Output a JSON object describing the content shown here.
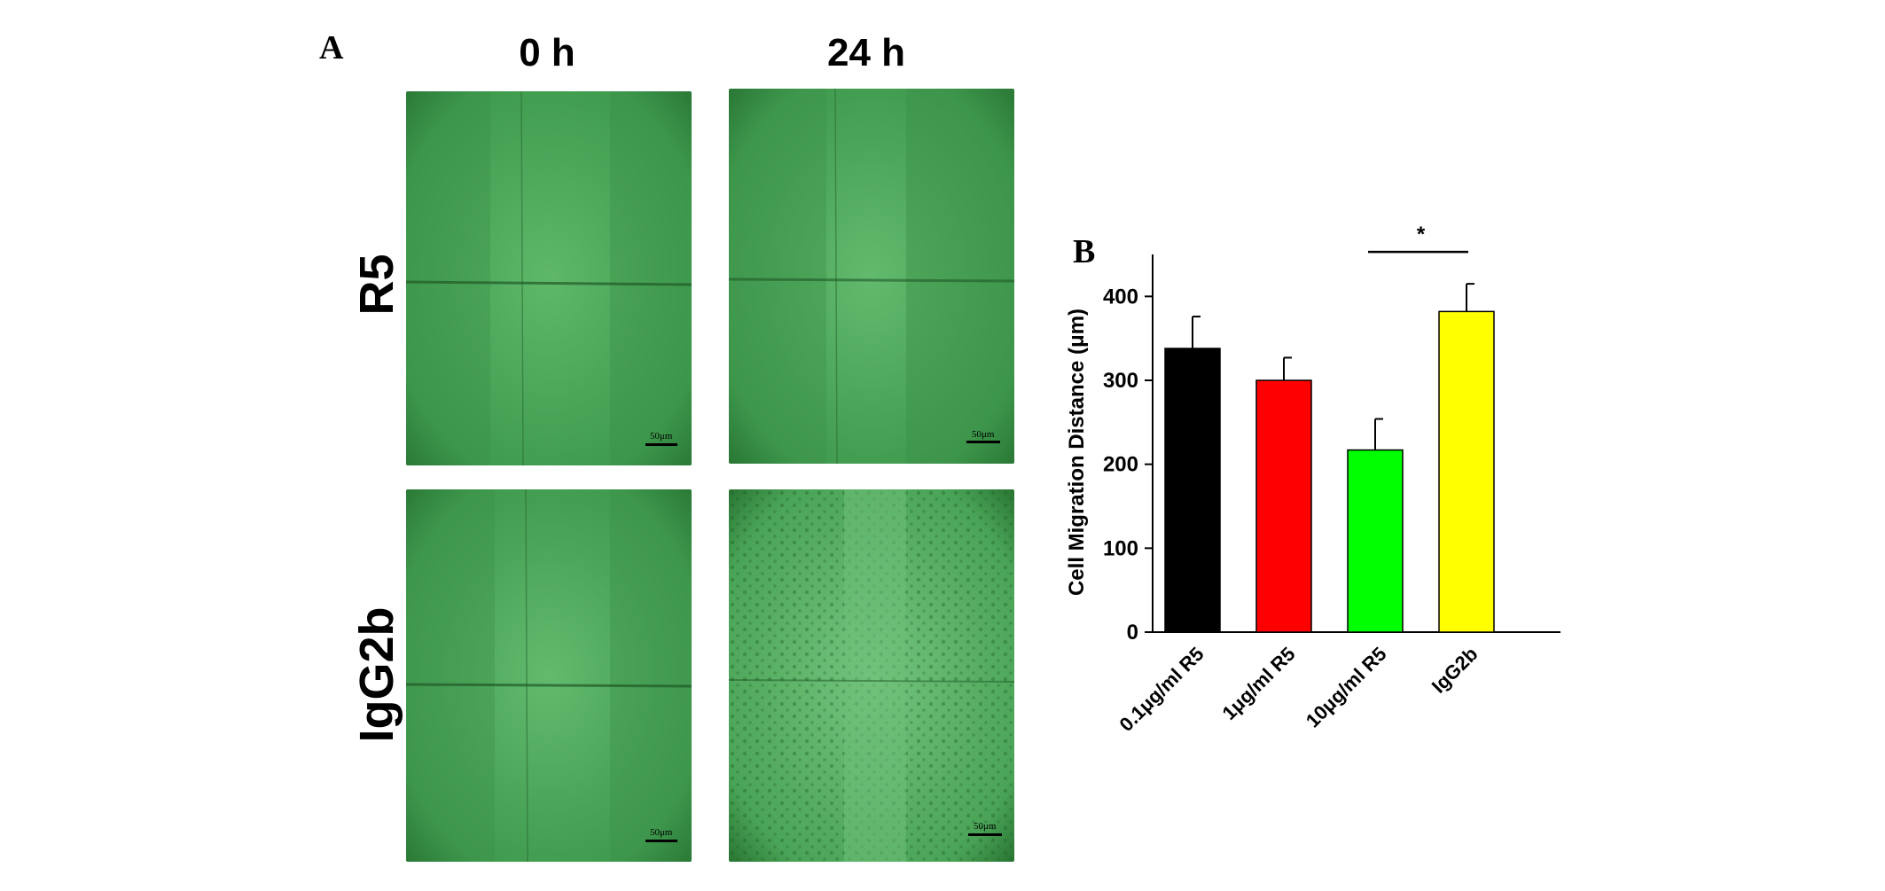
{
  "figure": {
    "panel_a_label": "A",
    "panel_b_label": "B",
    "columns": [
      "0 h",
      "24 h"
    ],
    "rows": [
      "R5",
      "IgG2b"
    ],
    "scale_bar_label": "50μm",
    "micrograph_color": "#2e8b3e"
  },
  "chart_data": {
    "type": "bar",
    "categories": [
      "0.1μg/ml R5",
      "1μg/ml R5",
      "10μg/ml R5",
      "IgG2b"
    ],
    "values": [
      338,
      300,
      217,
      382
    ],
    "errors": [
      38,
      27,
      37,
      33
    ],
    "colors": [
      "#000000",
      "#ff0000",
      "#00ff00",
      "#ffff00"
    ],
    "ylabel": "Cell Migration Distance (μm)",
    "ylim": [
      0,
      450
    ],
    "yticks": [
      0,
      100,
      200,
      300,
      400
    ],
    "grid": false,
    "significance": {
      "from": 2,
      "to": 3,
      "label": "*"
    }
  }
}
